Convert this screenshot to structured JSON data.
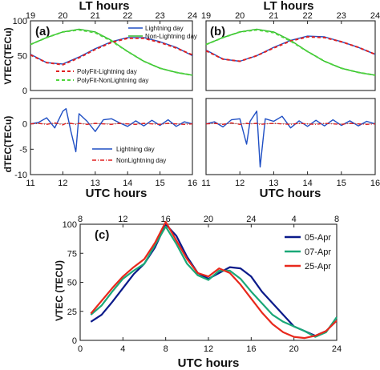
{
  "panels": {
    "top_axis_label": "LT hours",
    "bottom_axis_label": "UTC hours",
    "vtec_ylabel": "VTEC(TECu)",
    "dtec_ylabel": "dTEC(TECu)",
    "panel_a_label": "(a)",
    "panel_b_label": "(b)",
    "vtec_legend": {
      "lightning": "Lightning day",
      "non_lightning": "Non-Lightning day",
      "polyfit_lightning": "PolyFit-Lightning day",
      "polyfit_nonlightning": "PolyFit-NonLightning day"
    },
    "dtec_legend": {
      "lightning": "Lightning day",
      "non_lightning": "NonLightning day"
    }
  },
  "panel_c": {
    "label": "(c)",
    "xlabel": "UTC hours",
    "ylabel": "VTEC (TECU)"
  },
  "colors": {
    "blue": "#1f4fc4",
    "green": "#2eb52e",
    "red": "#e02020",
    "navy": "#0a1a8a",
    "teal": "#1aa878",
    "crimson": "#e8281c"
  },
  "chart_data": [
    {
      "type": "line",
      "panel": "(a) upper",
      "x": [
        11,
        11.5,
        12,
        12.5,
        13,
        13.5,
        14,
        14.5,
        15,
        15.5,
        16
      ],
      "top_x": [
        19,
        20,
        21,
        22,
        23,
        24
      ],
      "xlim": [
        11,
        16
      ],
      "ylim": [
        0,
        100
      ],
      "yticks": [
        0,
        50,
        100
      ],
      "series": [
        {
          "name": "Lightning day",
          "values": [
            52,
            40,
            38,
            48,
            60,
            70,
            76,
            76,
            70,
            62,
            50
          ]
        },
        {
          "name": "Non-Lightning day",
          "values": [
            66,
            76,
            84,
            88,
            84,
            72,
            56,
            42,
            32,
            26,
            22
          ]
        },
        {
          "name": "PolyFit-Lightning day",
          "values": [
            51,
            40,
            37,
            47,
            59,
            69,
            75,
            75,
            69,
            61,
            51
          ]
        },
        {
          "name": "PolyFit-NonLightning day",
          "values": [
            66,
            76,
            84,
            87,
            83,
            71,
            56,
            42,
            32,
            26,
            22
          ]
        }
      ]
    },
    {
      "type": "line",
      "panel": "(a) lower",
      "x": [
        11,
        11.25,
        11.5,
        11.75,
        12,
        12.1,
        12.25,
        12.4,
        12.5,
        12.75,
        13,
        13.25,
        13.5,
        13.75,
        14,
        14.25,
        14.5,
        14.75,
        15,
        15.25,
        15.5,
        15.75,
        16
      ],
      "xlim": [
        11,
        16
      ],
      "ylim": [
        -10,
        5
      ],
      "yticks": [
        -10,
        -5,
        0
      ],
      "series": [
        {
          "name": "Lightning day",
          "values": [
            0,
            0.3,
            1.2,
            -0.8,
            2.5,
            3,
            -1.5,
            -5.5,
            2,
            0.5,
            -1.5,
            0.8,
            1,
            0.2,
            -0.5,
            0.6,
            -0.4,
            0.7,
            -0.3,
            0.8,
            -0.5,
            0.4,
            0
          ]
        },
        {
          "name": "NonLightning day",
          "values": [
            0,
            0.1,
            -0.1,
            0.2,
            -0.2,
            0.1,
            0.1,
            -0.1,
            0.1,
            -0.1,
            0.1,
            0,
            -0.1,
            0.1,
            0,
            -0.1,
            0.1,
            0,
            -0.1,
            0.1,
            0,
            -0.1,
            0
          ]
        }
      ]
    },
    {
      "type": "line",
      "panel": "(b) upper",
      "x": [
        11,
        11.5,
        12,
        12.5,
        13,
        13.5,
        14,
        14.5,
        15,
        15.5,
        16
      ],
      "top_x": [
        19,
        20,
        21,
        22,
        23,
        24
      ],
      "xlim": [
        11,
        16
      ],
      "ylim": [
        0,
        100
      ],
      "series": [
        {
          "name": "Lightning day",
          "values": [
            58,
            45,
            42,
            50,
            62,
            72,
            78,
            77,
            70,
            62,
            52
          ]
        },
        {
          "name": "Non-Lightning day",
          "values": [
            66,
            76,
            84,
            88,
            84,
            72,
            56,
            42,
            32,
            26,
            22
          ]
        },
        {
          "name": "PolyFit-Lightning day",
          "values": [
            57,
            45,
            42,
            50,
            61,
            71,
            77,
            76,
            70,
            62,
            52
          ]
        },
        {
          "name": "PolyFit-NonLightning day",
          "values": [
            66,
            76,
            84,
            87,
            83,
            71,
            56,
            42,
            32,
            26,
            22
          ]
        }
      ]
    },
    {
      "type": "line",
      "panel": "(b) lower",
      "x": [
        11,
        11.25,
        11.5,
        11.75,
        12,
        12.2,
        12.3,
        12.5,
        12.6,
        12.75,
        13,
        13.25,
        13.5,
        13.75,
        14,
        14.25,
        14.5,
        14.75,
        15,
        15.25,
        15.5,
        15.75,
        16
      ],
      "xlim": [
        11,
        16
      ],
      "ylim": [
        -10,
        5
      ],
      "series": [
        {
          "name": "Lightning day",
          "values": [
            0,
            0.4,
            -0.6,
            0.8,
            1,
            -4,
            0.5,
            2.5,
            -8.5,
            1,
            0.5,
            1.5,
            -0.8,
            0.6,
            -0.5,
            0.7,
            -0.4,
            0.8,
            -0.3,
            0.6,
            -0.4,
            0.5,
            0
          ]
        },
        {
          "name": "NonLightning day",
          "values": [
            0,
            0.1,
            -0.1,
            0.2,
            -0.1,
            0.1,
            0,
            0.1,
            -0.1,
            0,
            0.1,
            0,
            -0.1,
            0.1,
            0,
            -0.1,
            0.1,
            0,
            -0.1,
            0.1,
            0,
            -0.1,
            0
          ]
        }
      ]
    },
    {
      "type": "line",
      "panel": "(c)",
      "x": [
        1,
        2,
        3,
        4,
        5,
        6,
        7,
        8,
        9,
        10,
        11,
        12,
        13,
        14,
        15,
        16,
        17,
        18,
        19,
        20,
        21,
        22,
        23,
        24
      ],
      "top_x": [
        8,
        12,
        16,
        20,
        24,
        4,
        8
      ],
      "xlim": [
        0,
        24
      ],
      "ylim": [
        0,
        100
      ],
      "xticks": [
        0,
        4,
        8,
        12,
        16,
        20,
        24
      ],
      "yticks": [
        0,
        25,
        50,
        75,
        100
      ],
      "xlabel": "UTC hours",
      "ylabel": "VTEC (TECU)",
      "series": [
        {
          "name": "05-Apr",
          "values": [
            16,
            22,
            33,
            45,
            57,
            66,
            80,
            100,
            90,
            72,
            58,
            53,
            58,
            63,
            62,
            55,
            42,
            32,
            22,
            12,
            8,
            4,
            8,
            17
          ]
        },
        {
          "name": "07-Apr",
          "values": [
            22,
            30,
            42,
            53,
            60,
            66,
            82,
            98,
            83,
            66,
            56,
            52,
            60,
            60,
            53,
            42,
            32,
            22,
            16,
            12,
            8,
            3,
            7,
            20
          ]
        },
        {
          "name": "25-Apr",
          "values": [
            23,
            34,
            45,
            55,
            63,
            70,
            84,
            102,
            86,
            70,
            58,
            55,
            62,
            58,
            48,
            36,
            24,
            14,
            7,
            3,
            2,
            4,
            8,
            17
          ]
        }
      ]
    }
  ]
}
